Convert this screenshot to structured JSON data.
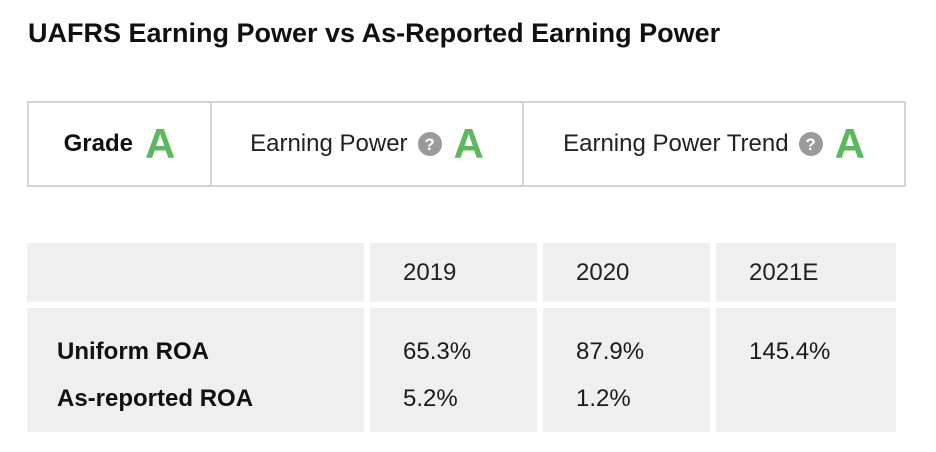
{
  "title": "UAFRS Earning Power vs As-Reported Earning Power",
  "grades": {
    "grade": {
      "label": "Grade",
      "value": "A"
    },
    "earning_power": {
      "label": "Earning Power",
      "value": "A",
      "help_icon": "?"
    },
    "earning_power_trend": {
      "label": "Earning Power Trend",
      "value": "A",
      "help_icon": "?"
    }
  },
  "colors": {
    "grade_green": "#5cb85c",
    "help_icon_gray": "#9a9a9a",
    "cell_background": "#efefef",
    "border": "#d4d4d4"
  },
  "table": {
    "headers": [
      "",
      "2019",
      "2020",
      "2021E"
    ],
    "rows": [
      {
        "label": "Uniform ROA",
        "values": [
          "65.3%",
          "87.9%",
          "145.4%"
        ]
      },
      {
        "label": "As-reported ROA",
        "values": [
          "5.2%",
          "1.2%",
          ""
        ]
      }
    ]
  }
}
